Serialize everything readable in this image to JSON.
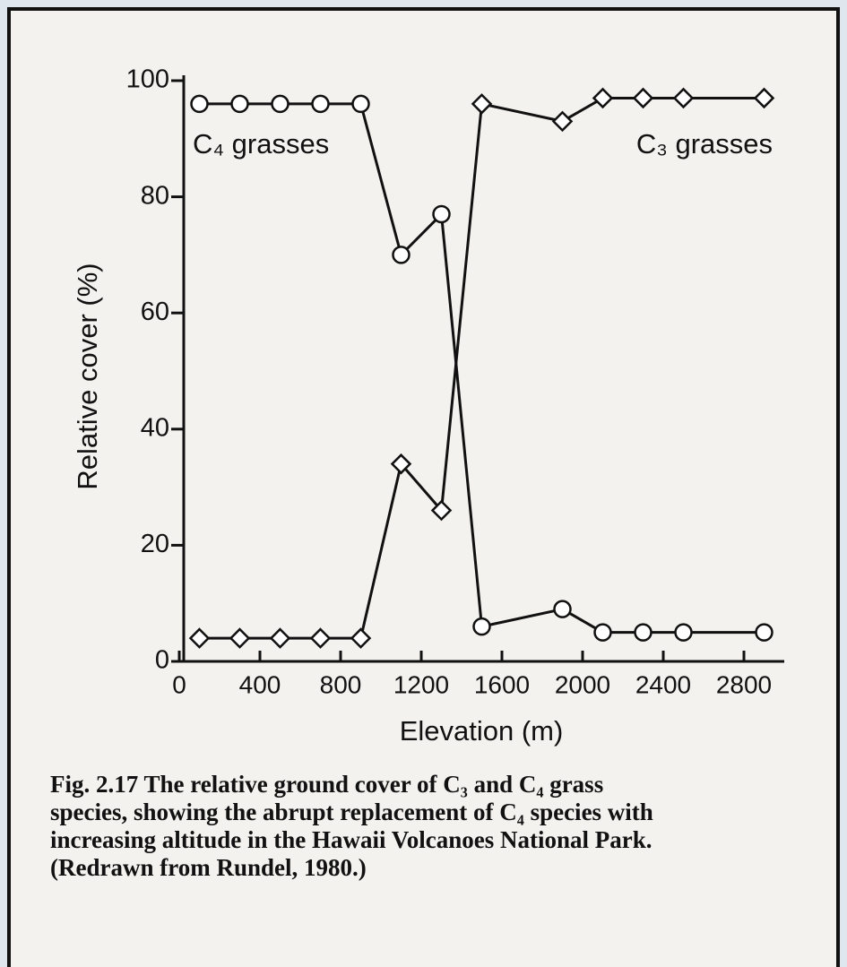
{
  "chart_data": {
    "type": "line",
    "x": [
      100,
      300,
      500,
      700,
      900,
      1100,
      1300,
      1500,
      1900,
      2100,
      2300,
      2500,
      2900
    ],
    "series": [
      {
        "name": "C₄ grasses",
        "color": "#111111",
        "marker": "circle",
        "values": [
          96,
          96,
          96,
          96,
          96,
          70,
          77,
          6,
          9,
          5,
          5,
          5,
          5
        ]
      },
      {
        "name": "C₃ grasses",
        "color": "#111111",
        "marker": "diamond",
        "values": [
          4,
          4,
          4,
          4,
          4,
          34,
          26,
          96,
          93,
          97,
          97,
          97,
          97
        ]
      }
    ],
    "xlabel": "Elevation (m)",
    "ylabel": "Relative cover (%)",
    "xlim": [
      0,
      3000
    ],
    "xticks": [
      0,
      400,
      800,
      1200,
      1600,
      2000,
      2400,
      2800
    ],
    "ylim": [
      0,
      100
    ],
    "yticks": [
      0,
      20,
      40,
      60,
      80,
      100
    ],
    "grid": false,
    "caption": {
      "label": "Fig. 2.17",
      "lines": [
        "The relative ground cover of C₃ and C₄ grass",
        "species, showing the abrupt replacement of C₄ species with",
        "increasing altitude in the Hawaii Volcanoes National Park.",
        "(Redrawn from Rundel, 1980.)"
      ]
    }
  }
}
